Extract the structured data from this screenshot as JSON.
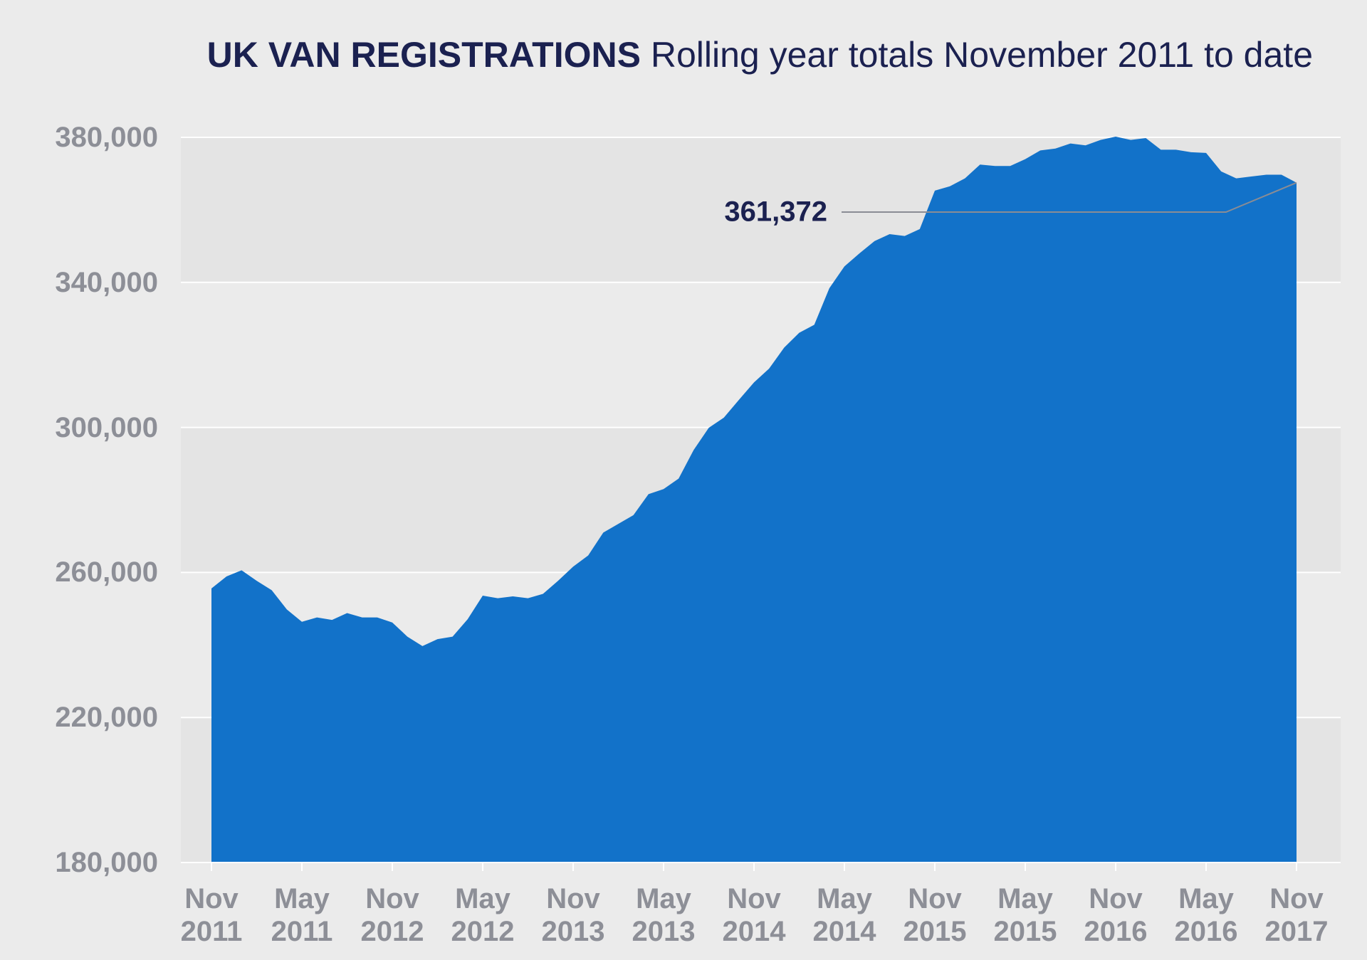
{
  "chart_data": {
    "type": "area",
    "title": "UK VAN REGISTRATIONS",
    "subtitle": "Rolling year totals November 2011 to date",
    "annotation": "361,372",
    "color": "#1272c9",
    "categories": [
      "Nov 2011",
      null,
      null,
      null,
      null,
      null,
      "May 2011",
      null,
      null,
      null,
      null,
      null,
      "Nov 2012",
      null,
      null,
      null,
      null,
      null,
      "May 2012",
      null,
      null,
      null,
      null,
      null,
      "Nov 2013",
      null,
      null,
      null,
      null,
      null,
      "May 2013",
      null,
      null,
      null,
      null,
      null,
      "Nov 2014",
      null,
      null,
      null,
      null,
      null,
      "May 2014",
      null,
      null,
      null,
      null,
      null,
      "Nov 2015",
      null,
      null,
      null,
      null,
      null,
      "May 2015",
      null,
      null,
      null,
      null,
      null,
      "Nov 2016",
      null,
      null,
      null,
      null,
      null,
      "May 2016",
      null,
      null,
      null,
      null,
      null,
      "Nov 2017"
    ],
    "values": [
      255600,
      258900,
      260600,
      257700,
      255100,
      249800,
      246400,
      247600,
      246900,
      248800,
      247600,
      247600,
      246200,
      242300,
      239700,
      241600,
      242300,
      247100,
      253600,
      252900,
      253400,
      252900,
      254100,
      257700,
      261600,
      264700,
      271000,
      273400,
      275800,
      281600,
      283000,
      285900,
      293800,
      299900,
      302700,
      307600,
      312400,
      316200,
      322000,
      326100,
      328300,
      338400,
      344400,
      348000,
      351400,
      353300,
      352800,
      354700,
      365300,
      366500,
      368700,
      372500,
      372100,
      372100,
      374000,
      376400,
      376900,
      378300,
      377800,
      379300,
      380200,
      379300,
      379800,
      376600,
      376600,
      375900,
      375700,
      370600,
      368700,
      369200,
      369700,
      369700,
      367500
    ],
    "ylim": [
      180000,
      380000
    ],
    "yticks": [
      {
        "value": 180000,
        "label": "180,000"
      },
      {
        "value": 220000,
        "label": "220,000"
      },
      {
        "value": 260000,
        "label": "260,000"
      },
      {
        "value": 300000,
        "label": "300,000"
      },
      {
        "value": 340000,
        "label": "340,000"
      },
      {
        "value": 380000,
        "label": "380,000"
      }
    ],
    "grid": true
  }
}
